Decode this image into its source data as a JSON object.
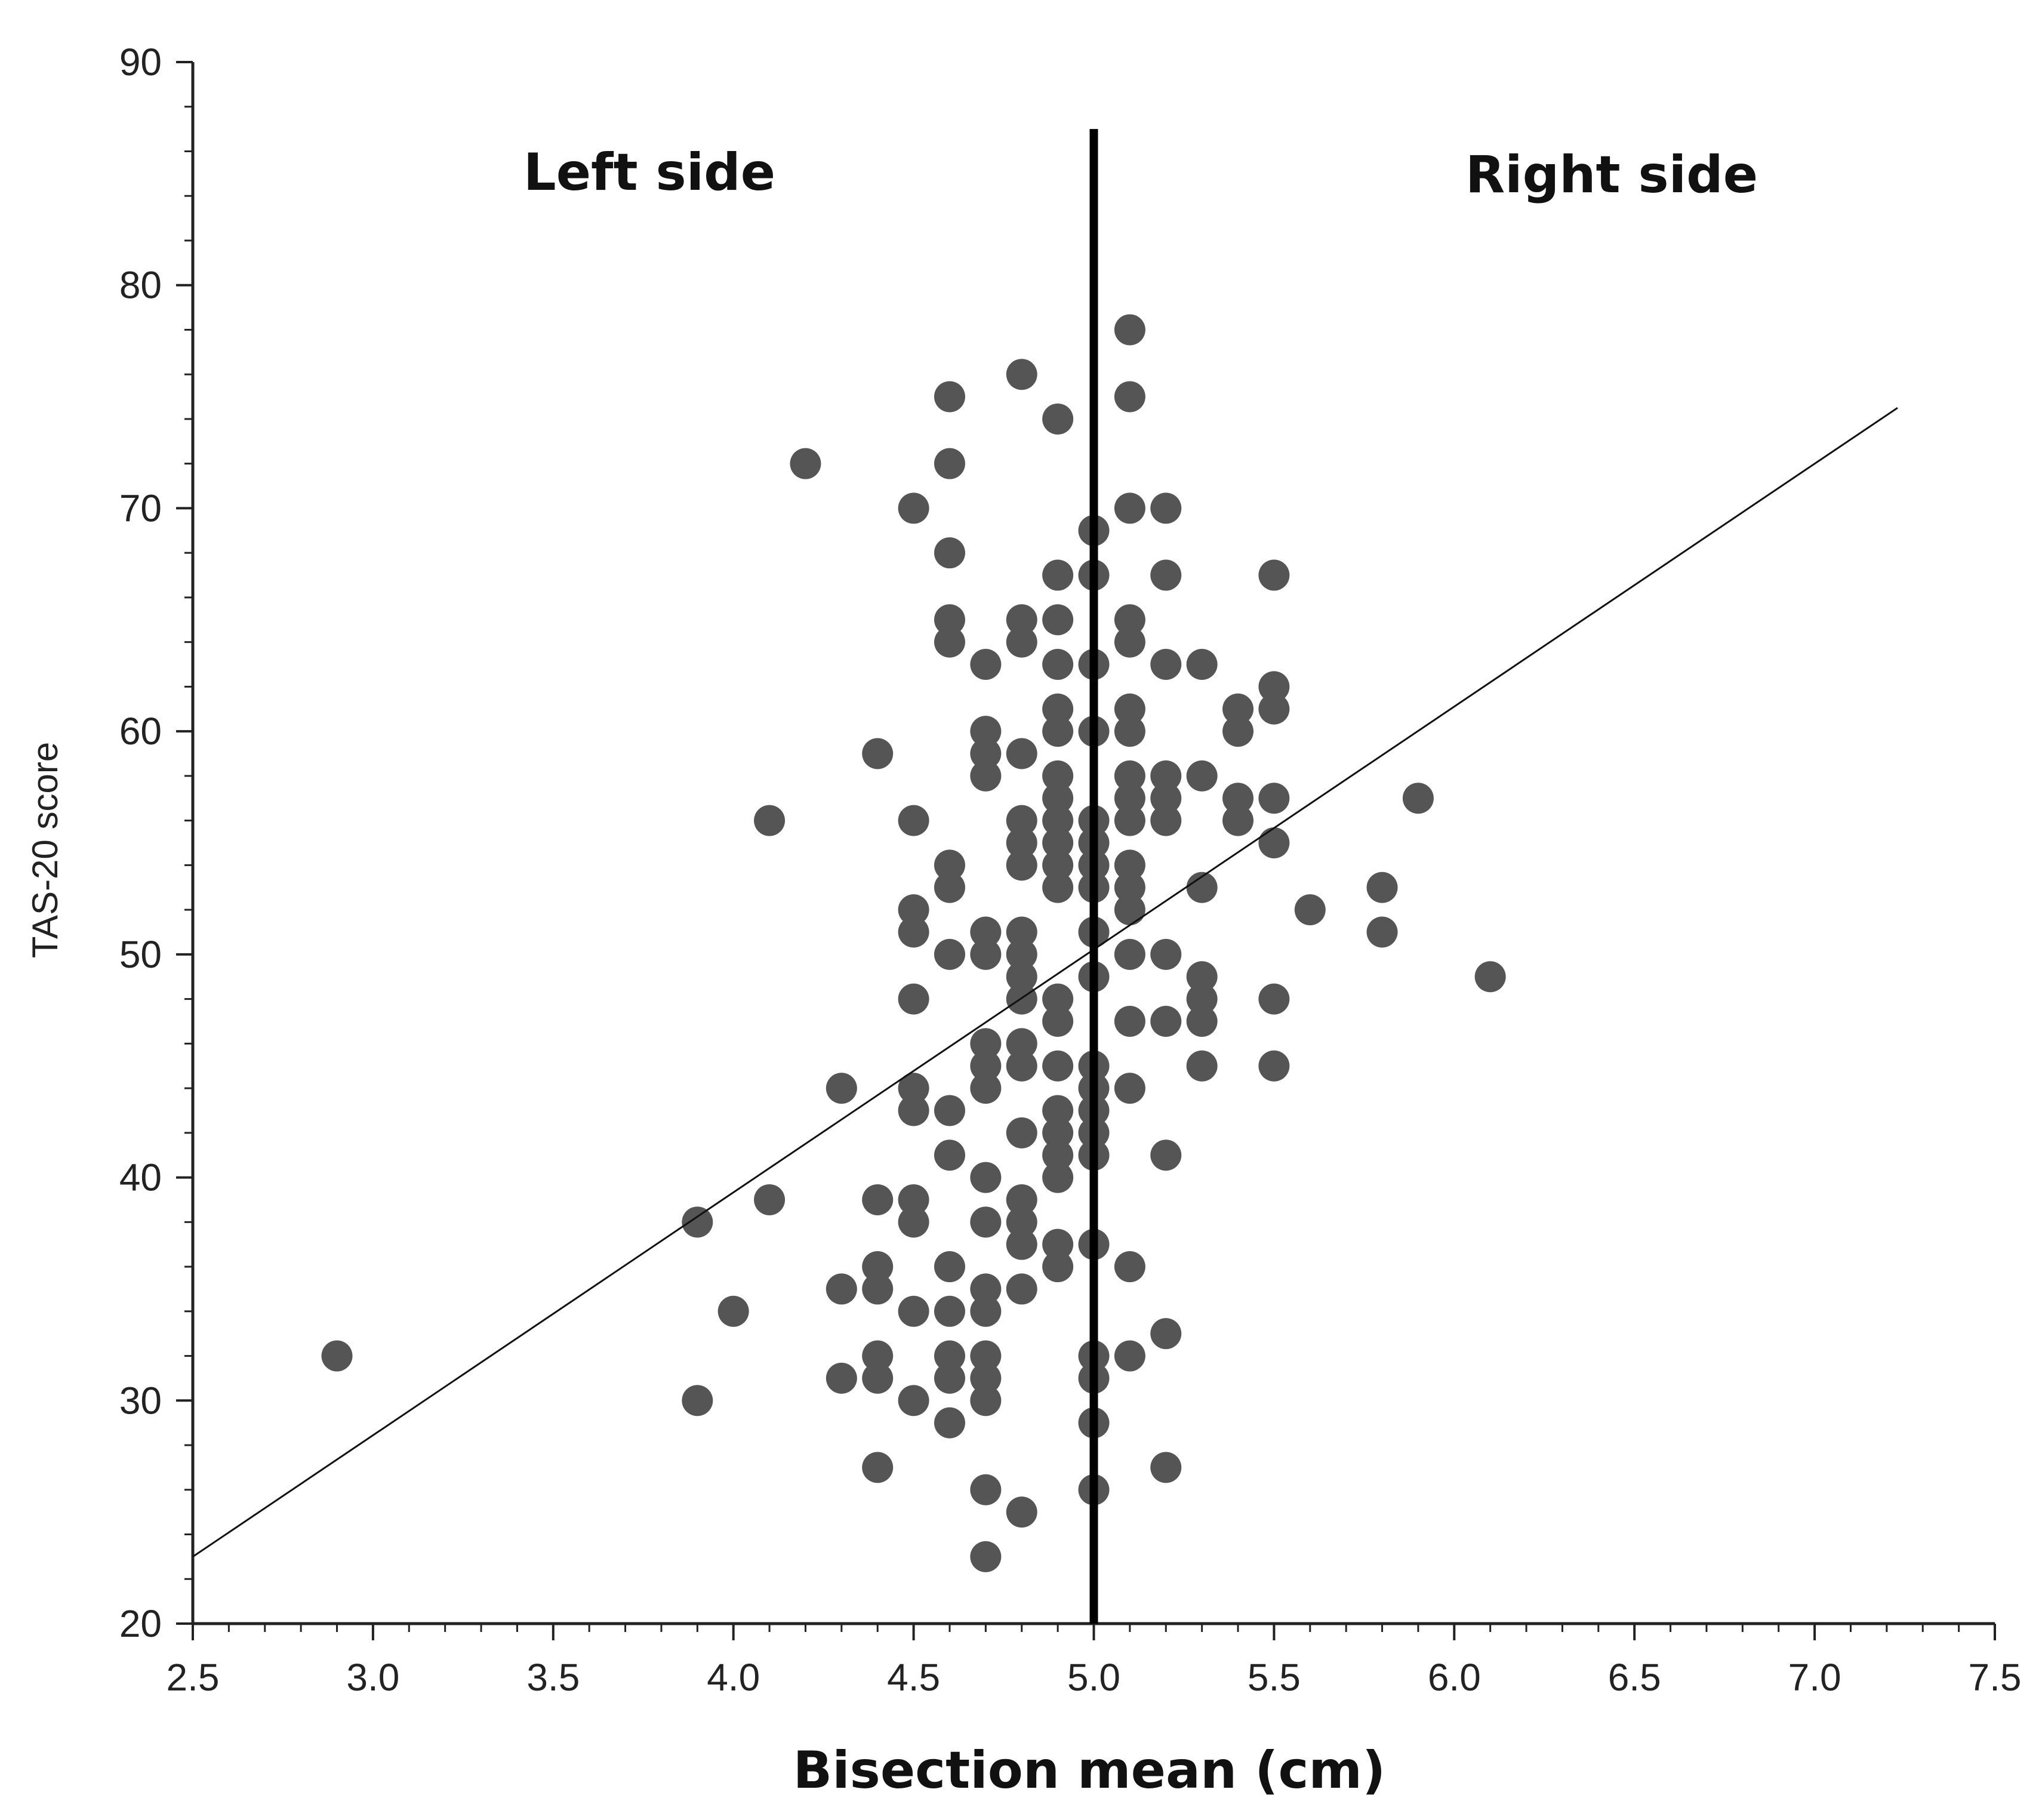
{
  "chart_data": {
    "type": "scatter",
    "title": "",
    "xlabel": "Bisection mean (cm)",
    "ylabel": "TAS-20 score",
    "xlim": [
      2.5,
      7.5
    ],
    "ylim": [
      20,
      90
    ],
    "xticks": [
      "2.5",
      "3.0",
      "3.5",
      "4.0",
      "4.5",
      "5.0",
      "5.5",
      "6.0",
      "6.5",
      "7.0",
      "7.5"
    ],
    "yticks": [
      "20",
      "30",
      "40",
      "50",
      "60",
      "70",
      "80",
      "90"
    ],
    "grid": false,
    "annotations": {
      "left_label": "Left side",
      "right_label": "Right side",
      "reference_line_x": 5.0,
      "reference_line_ylim": [
        20,
        87
      ]
    },
    "regression_line": {
      "x": [
        2.5,
        7.23
      ],
      "y": [
        23,
        74.5
      ]
    },
    "points": [
      [
        2.9,
        32
      ],
      [
        3.9,
        38
      ],
      [
        3.9,
        30
      ],
      [
        4.0,
        34
      ],
      [
        4.1,
        56
      ],
      [
        4.1,
        39
      ],
      [
        4.2,
        72
      ],
      [
        4.3,
        44
      ],
      [
        4.3,
        35
      ],
      [
        4.3,
        31
      ],
      [
        4.4,
        59
      ],
      [
        4.4,
        39
      ],
      [
        4.4,
        36
      ],
      [
        4.4,
        35
      ],
      [
        4.4,
        32
      ],
      [
        4.4,
        31
      ],
      [
        4.4,
        27
      ],
      [
        4.5,
        70
      ],
      [
        4.5,
        56
      ],
      [
        4.5,
        52
      ],
      [
        4.5,
        51
      ],
      [
        4.5,
        48
      ],
      [
        4.5,
        44
      ],
      [
        4.5,
        43
      ],
      [
        4.5,
        39
      ],
      [
        4.5,
        38
      ],
      [
        4.5,
        34
      ],
      [
        4.5,
        30
      ],
      [
        4.6,
        75
      ],
      [
        4.6,
        72
      ],
      [
        4.6,
        68
      ],
      [
        4.6,
        65
      ],
      [
        4.6,
        64
      ],
      [
        4.6,
        54
      ],
      [
        4.6,
        53
      ],
      [
        4.6,
        50
      ],
      [
        4.6,
        43
      ],
      [
        4.6,
        41
      ],
      [
        4.6,
        36
      ],
      [
        4.6,
        34
      ],
      [
        4.6,
        32
      ],
      [
        4.6,
        31
      ],
      [
        4.6,
        29
      ],
      [
        4.7,
        63
      ],
      [
        4.7,
        60
      ],
      [
        4.7,
        59
      ],
      [
        4.7,
        58
      ],
      [
        4.7,
        51
      ],
      [
        4.7,
        50
      ],
      [
        4.7,
        46
      ],
      [
        4.7,
        45
      ],
      [
        4.7,
        44
      ],
      [
        4.7,
        40
      ],
      [
        4.7,
        38
      ],
      [
        4.7,
        35
      ],
      [
        4.7,
        34
      ],
      [
        4.7,
        32
      ],
      [
        4.7,
        31
      ],
      [
        4.7,
        30
      ],
      [
        4.7,
        26
      ],
      [
        4.7,
        23
      ],
      [
        4.8,
        76
      ],
      [
        4.8,
        65
      ],
      [
        4.8,
        64
      ],
      [
        4.8,
        59
      ],
      [
        4.8,
        56
      ],
      [
        4.8,
        55
      ],
      [
        4.8,
        54
      ],
      [
        4.8,
        51
      ],
      [
        4.8,
        50
      ],
      [
        4.8,
        49
      ],
      [
        4.8,
        48
      ],
      [
        4.8,
        46
      ],
      [
        4.8,
        45
      ],
      [
        4.8,
        42
      ],
      [
        4.8,
        39
      ],
      [
        4.8,
        38
      ],
      [
        4.8,
        37
      ],
      [
        4.8,
        35
      ],
      [
        4.8,
        25
      ],
      [
        4.9,
        74
      ],
      [
        4.9,
        67
      ],
      [
        4.9,
        65
      ],
      [
        4.9,
        63
      ],
      [
        4.9,
        61
      ],
      [
        4.9,
        60
      ],
      [
        4.9,
        58
      ],
      [
        4.9,
        57
      ],
      [
        4.9,
        56
      ],
      [
        4.9,
        55
      ],
      [
        4.9,
        54
      ],
      [
        4.9,
        53
      ],
      [
        4.9,
        48
      ],
      [
        4.9,
        47
      ],
      [
        4.9,
        45
      ],
      [
        4.9,
        43
      ],
      [
        4.9,
        42
      ],
      [
        4.9,
        41
      ],
      [
        4.9,
        40
      ],
      [
        4.9,
        37
      ],
      [
        4.9,
        36
      ],
      [
        5.0,
        69
      ],
      [
        5.0,
        67
      ],
      [
        5.0,
        63
      ],
      [
        5.0,
        60
      ],
      [
        5.0,
        56
      ],
      [
        5.0,
        55
      ],
      [
        5.0,
        54
      ],
      [
        5.0,
        53
      ],
      [
        5.0,
        51
      ],
      [
        5.0,
        49
      ],
      [
        5.0,
        45
      ],
      [
        5.0,
        44
      ],
      [
        5.0,
        43
      ],
      [
        5.0,
        42
      ],
      [
        5.0,
        41
      ],
      [
        5.0,
        37
      ],
      [
        5.0,
        32
      ],
      [
        5.0,
        31
      ],
      [
        5.0,
        29
      ],
      [
        5.0,
        26
      ],
      [
        5.1,
        78
      ],
      [
        5.1,
        75
      ],
      [
        5.1,
        70
      ],
      [
        5.1,
        65
      ],
      [
        5.1,
        64
      ],
      [
        5.1,
        61
      ],
      [
        5.1,
        60
      ],
      [
        5.1,
        58
      ],
      [
        5.1,
        57
      ],
      [
        5.1,
        56
      ],
      [
        5.1,
        54
      ],
      [
        5.1,
        53
      ],
      [
        5.1,
        52
      ],
      [
        5.1,
        50
      ],
      [
        5.1,
        47
      ],
      [
        5.1,
        44
      ],
      [
        5.1,
        36
      ],
      [
        5.1,
        32
      ],
      [
        5.2,
        70
      ],
      [
        5.2,
        67
      ],
      [
        5.2,
        63
      ],
      [
        5.2,
        58
      ],
      [
        5.2,
        57
      ],
      [
        5.2,
        56
      ],
      [
        5.2,
        50
      ],
      [
        5.2,
        47
      ],
      [
        5.2,
        41
      ],
      [
        5.2,
        33
      ],
      [
        5.2,
        27
      ],
      [
        5.3,
        63
      ],
      [
        5.3,
        58
      ],
      [
        5.3,
        53
      ],
      [
        5.3,
        49
      ],
      [
        5.3,
        48
      ],
      [
        5.3,
        47
      ],
      [
        5.3,
        45
      ],
      [
        5.4,
        61
      ],
      [
        5.4,
        60
      ],
      [
        5.4,
        57
      ],
      [
        5.4,
        56
      ],
      [
        5.5,
        67
      ],
      [
        5.5,
        62
      ],
      [
        5.5,
        61
      ],
      [
        5.5,
        57
      ],
      [
        5.5,
        55
      ],
      [
        5.5,
        48
      ],
      [
        5.5,
        45
      ],
      [
        5.6,
        52
      ],
      [
        5.8,
        53
      ],
      [
        5.8,
        51
      ],
      [
        5.9,
        57
      ],
      [
        6.1,
        49
      ]
    ],
    "colors": {
      "points": "#555555",
      "axis": "#222222",
      "line": "#111111",
      "reference": "#000000"
    }
  }
}
